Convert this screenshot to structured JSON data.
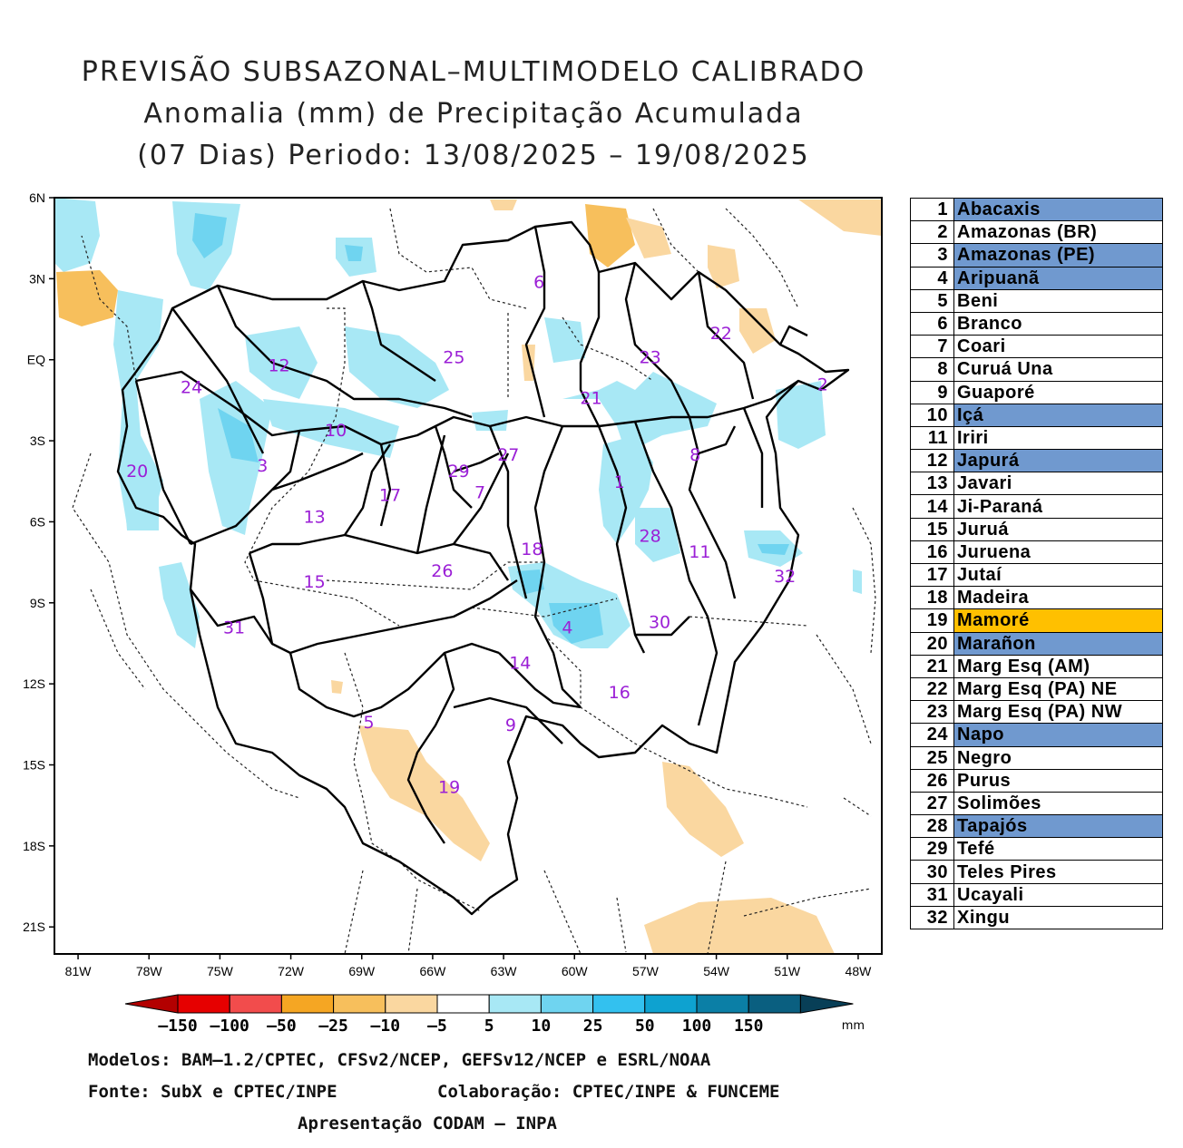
{
  "title": {
    "line1": "PREVISÃO SUBSAZONAL–MULTIMODELO CALIBRADO",
    "line2": "Anomalia (mm) de Precipitação Acumulada",
    "line3": "(07 Dias) Periodo: 13/08/2025 – 19/08/2025"
  },
  "axes": {
    "lat_labels": [
      "6N",
      "3N",
      "EQ",
      "3S",
      "6S",
      "9S",
      "12S",
      "15S",
      "18S",
      "21S"
    ],
    "lon_labels": [
      "81W",
      "78W",
      "75W",
      "72W",
      "69W",
      "66W",
      "63W",
      "60W",
      "57W",
      "54W",
      "51W",
      "48W"
    ]
  },
  "basin_labels": [
    {
      "num": "1",
      "lon": -58.1,
      "lat": -4.5
    },
    {
      "num": "2",
      "lon": -49.5,
      "lat": -0.9
    },
    {
      "num": "3",
      "lon": -73.2,
      "lat": -3.9
    },
    {
      "num": "4",
      "lon": -60.3,
      "lat": -9.9
    },
    {
      "num": "5",
      "lon": -68.7,
      "lat": -13.4
    },
    {
      "num": "6",
      "lon": -61.5,
      "lat": 2.9
    },
    {
      "num": "7",
      "lon": -64.0,
      "lat": -4.9
    },
    {
      "num": "8",
      "lon": -54.9,
      "lat": -3.5
    },
    {
      "num": "9",
      "lon": -62.7,
      "lat": -13.5
    },
    {
      "num": "10",
      "lon": -70.1,
      "lat": -2.6
    },
    {
      "num": "11",
      "lon": -54.7,
      "lat": -7.1
    },
    {
      "num": "12",
      "lon": -72.5,
      "lat": -0.2
    },
    {
      "num": "13",
      "lon": -71.0,
      "lat": -5.8
    },
    {
      "num": "14",
      "lon": -62.3,
      "lat": -11.2
    },
    {
      "num": "15",
      "lon": -71.0,
      "lat": -8.2
    },
    {
      "num": "16",
      "lon": -58.1,
      "lat": -12.3
    },
    {
      "num": "17",
      "lon": -67.8,
      "lat": -5.0
    },
    {
      "num": "18",
      "lon": -61.8,
      "lat": -7.0
    },
    {
      "num": "19",
      "lon": -65.3,
      "lat": -15.8
    },
    {
      "num": "20",
      "lon": -78.5,
      "lat": -4.1
    },
    {
      "num": "21",
      "lon": -59.3,
      "lat": -1.4
    },
    {
      "num": "22",
      "lon": -53.8,
      "lat": 1.0
    },
    {
      "num": "23",
      "lon": -56.8,
      "lat": 0.1
    },
    {
      "num": "24",
      "lon": -76.2,
      "lat": -1.0
    },
    {
      "num": "25",
      "lon": -65.1,
      "lat": 0.1
    },
    {
      "num": "26",
      "lon": -65.6,
      "lat": -7.8
    },
    {
      "num": "27",
      "lon": -62.8,
      "lat": -3.5
    },
    {
      "num": "28",
      "lon": -56.8,
      "lat": -6.5
    },
    {
      "num": "29",
      "lon": -64.9,
      "lat": -4.1
    },
    {
      "num": "30",
      "lon": -56.4,
      "lat": -9.7
    },
    {
      "num": "31",
      "lon": -74.4,
      "lat": -9.9
    },
    {
      "num": "32",
      "lon": -51.1,
      "lat": -8.0
    }
  ],
  "colorbar": {
    "labels": [
      "–150",
      "–100",
      "–50",
      "–25",
      "–10",
      "–5",
      "5",
      "10",
      "25",
      "50",
      "100",
      "150"
    ],
    "colors": [
      "#e60000",
      "#f24c4c",
      "#f5a623",
      "#f7bf5c",
      "#fad7a0",
      "#ffffff",
      "#a8e8f5",
      "#6fd4f0",
      "#33c1ef",
      "#0ea2d0",
      "#0b7fa6",
      "#0a5f80"
    ],
    "low_color": "#b30000",
    "high_color": "#083f57",
    "unit": "mm"
  },
  "legend": [
    {
      "num": "1",
      "name": "Abacaxis",
      "highlight": "blue"
    },
    {
      "num": "2",
      "name": "Amazonas (BR)",
      "highlight": "none"
    },
    {
      "num": "3",
      "name": "Amazonas (PE)",
      "highlight": "blue"
    },
    {
      "num": "4",
      "name": "Aripuanã",
      "highlight": "blue"
    },
    {
      "num": "5",
      "name": "Beni",
      "highlight": "none"
    },
    {
      "num": "6",
      "name": "Branco",
      "highlight": "none"
    },
    {
      "num": "7",
      "name": "Coari",
      "highlight": "none"
    },
    {
      "num": "8",
      "name": "Curuá Una",
      "highlight": "none"
    },
    {
      "num": "9",
      "name": "Guaporé",
      "highlight": "none"
    },
    {
      "num": "10",
      "name": "Içá",
      "highlight": "blue"
    },
    {
      "num": "11",
      "name": "Iriri",
      "highlight": "none"
    },
    {
      "num": "12",
      "name": "Japurá",
      "highlight": "blue"
    },
    {
      "num": "13",
      "name": "Javari",
      "highlight": "none"
    },
    {
      "num": "14",
      "name": "Ji-Paraná",
      "highlight": "none"
    },
    {
      "num": "15",
      "name": "Juruá",
      "highlight": "none"
    },
    {
      "num": "16",
      "name": "Juruena",
      "highlight": "none"
    },
    {
      "num": "17",
      "name": "Jutaí",
      "highlight": "none"
    },
    {
      "num": "18",
      "name": "Madeira",
      "highlight": "none"
    },
    {
      "num": "19",
      "name": "Mamoré",
      "highlight": "orange"
    },
    {
      "num": "20",
      "name": "Marañon",
      "highlight": "blue"
    },
    {
      "num": "21",
      "name": "Marg Esq (AM)",
      "highlight": "none"
    },
    {
      "num": "22",
      "name": "Marg Esq (PA) NE",
      "highlight": "none"
    },
    {
      "num": "23",
      "name": "Marg Esq (PA) NW",
      "highlight": "none"
    },
    {
      "num": "24",
      "name": "Napo",
      "highlight": "blue"
    },
    {
      "num": "25",
      "name": "Negro",
      "highlight": "none"
    },
    {
      "num": "26",
      "name": "Purus",
      "highlight": "none"
    },
    {
      "num": "27",
      "name": "Solimões",
      "highlight": "none"
    },
    {
      "num": "28",
      "name": "Tapajós",
      "highlight": "blue"
    },
    {
      "num": "29",
      "name": "Tefé",
      "highlight": "none"
    },
    {
      "num": "30",
      "name": "Teles Pires",
      "highlight": "none"
    },
    {
      "num": "31",
      "name": "Ucayali",
      "highlight": "none"
    },
    {
      "num": "32",
      "name": "Xingu",
      "highlight": "none"
    }
  ],
  "highlight_colors": {
    "blue": "#7099cf",
    "orange": "#ffc000"
  },
  "footer": {
    "models": "Modelos: BAM–1.2/CPTEC, CFSv2/NCEP, GEFSv12/NCEP e ESRL/NOAA",
    "source": "Fonte: SubX e CPTEC/INPE",
    "collab": "Colaboração: CPTEC/INPE & FUNCEME",
    "presentation": "Apresentação CODAM – INPA"
  }
}
